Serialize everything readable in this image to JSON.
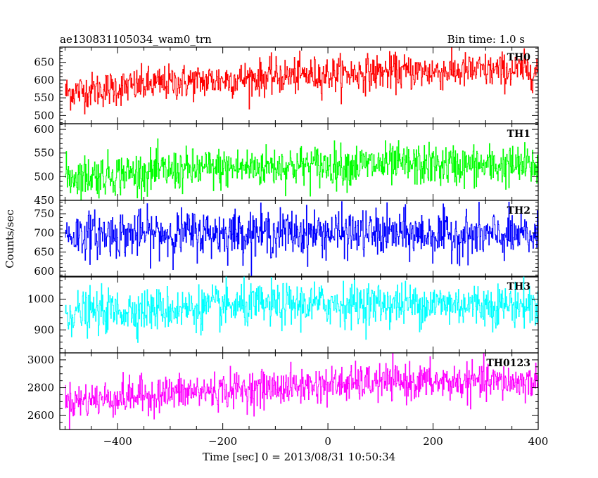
{
  "header": {
    "left_title": "ae130831105034_wam0_trn",
    "right_title": "Bin time: 1.0 s"
  },
  "axes": {
    "xlabel": "Time [sec] 0 = 2013/08/31 10:50:34",
    "ylabel": "Counts/sec"
  },
  "chart_data": {
    "type": "line",
    "x_range": [
      -510,
      400
    ],
    "x_ticks": [
      -400,
      -200,
      0,
      200,
      400
    ],
    "x_minor_step": 50,
    "bin_time_s": 1.0,
    "panels": [
      {
        "name": "TH0",
        "color": "#ff0000",
        "ylim": [
          477,
          693
        ],
        "y_ticks": [
          500,
          550,
          600,
          650
        ],
        "y_minor_step": 10,
        "trend": [
          [
            -500,
            565
          ],
          [
            -300,
            592
          ],
          [
            -100,
            610
          ],
          [
            100,
            622
          ],
          [
            400,
            628
          ]
        ],
        "noise_sd": 25
      },
      {
        "name": "TH1",
        "color": "#00ff00",
        "ylim": [
          450,
          612
        ],
        "y_ticks": [
          450,
          500,
          550,
          600
        ],
        "y_minor_step": 10,
        "trend": [
          [
            -500,
            500
          ],
          [
            -300,
            512
          ],
          [
            -100,
            522
          ],
          [
            100,
            525
          ],
          [
            400,
            522
          ]
        ],
        "noise_sd": 22
      },
      {
        "name": "TH2",
        "color": "#0000ff",
        "ylim": [
          585,
          785
        ],
        "y_ticks": [
          600,
          650,
          700,
          750
        ],
        "y_minor_step": 10,
        "trend": [
          [
            -500,
            695
          ],
          [
            -200,
            700
          ],
          [
            0,
            700
          ],
          [
            200,
            695
          ],
          [
            400,
            690
          ]
        ],
        "noise_sd": 30
      },
      {
        "name": "TH3",
        "color": "#00ffff",
        "ylim": [
          825,
          1075
        ],
        "y_ticks": [
          900,
          1000
        ],
        "y_minor_step": 20,
        "trend": [
          [
            -500,
            955
          ],
          [
            -200,
            975
          ],
          [
            0,
            985
          ],
          [
            200,
            985
          ],
          [
            400,
            980
          ]
        ],
        "noise_sd": 35
      },
      {
        "name": "TH0123",
        "color": "#ff00ff",
        "ylim": [
          2500,
          3050
        ],
        "y_ticks": [
          2600,
          2800,
          3000
        ],
        "y_minor_step": 50,
        "trend": [
          [
            -500,
            2700
          ],
          [
            -300,
            2760
          ],
          [
            -100,
            2800
          ],
          [
            100,
            2840
          ],
          [
            400,
            2840
          ]
        ],
        "noise_sd": 65
      }
    ]
  }
}
